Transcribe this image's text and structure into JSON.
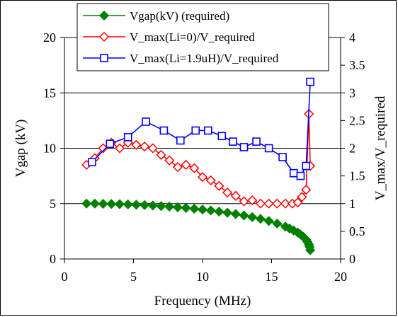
{
  "chart_data": {
    "type": "line",
    "xlabel": "Frequency (MHz)",
    "ylabel": "Vgap (kV)",
    "y2label": "V_max/V_required",
    "xlim": [
      0,
      20
    ],
    "ylim": [
      0,
      20
    ],
    "y2lim": [
      0,
      4
    ],
    "xticks": [
      "0",
      "5",
      "10",
      "15",
      "20"
    ],
    "yticks": [
      "0",
      "5",
      "10",
      "15",
      "20"
    ],
    "y2ticks": [
      "0",
      "0.5",
      "1",
      "1.5",
      "2",
      "2.5",
      "3",
      "3.5",
      "4"
    ],
    "grid": "horizontal major lines",
    "legend_position": "top",
    "series": [
      {
        "name": "Vgap(kV) (required)",
        "axis": "left",
        "color": "#008000",
        "marker": "filled-diamond",
        "x": [
          1.6,
          2.2,
          2.8,
          3.4,
          4.0,
          4.6,
          5.2,
          5.8,
          6.4,
          7.0,
          7.6,
          8.2,
          8.8,
          9.4,
          10.0,
          10.6,
          11.2,
          11.8,
          12.4,
          13.0,
          13.6,
          14.2,
          14.8,
          15.4,
          16.0,
          16.3,
          16.6,
          16.9,
          17.1,
          17.3,
          17.5,
          17.6,
          17.7,
          17.75,
          17.8
        ],
        "y": [
          5.0,
          5.0,
          4.98,
          4.97,
          4.95,
          4.93,
          4.9,
          4.87,
          4.83,
          4.78,
          4.73,
          4.67,
          4.61,
          4.54,
          4.46,
          4.38,
          4.28,
          4.18,
          4.06,
          3.93,
          3.78,
          3.62,
          3.43,
          3.2,
          2.92,
          2.75,
          2.57,
          2.38,
          2.2,
          2.0,
          1.75,
          1.55,
          1.3,
          1.1,
          0.8
        ]
      },
      {
        "name": "V_max(Li=0)/V_required",
        "axis": "right",
        "color": "#ff0000",
        "marker": "open-diamond",
        "x": [
          1.6,
          2.2,
          2.8,
          3.4,
          4.0,
          4.6,
          5.2,
          5.8,
          6.4,
          7.0,
          7.6,
          8.2,
          8.8,
          9.4,
          10.0,
          10.6,
          11.2,
          11.8,
          12.4,
          13.0,
          13.6,
          14.2,
          14.8,
          15.4,
          16.0,
          16.5,
          16.9,
          17.2,
          17.5,
          17.7,
          17.8
        ],
        "y": [
          1.7,
          1.82,
          2.0,
          2.1,
          2.0,
          2.1,
          2.06,
          2.03,
          2.0,
          1.88,
          1.78,
          1.66,
          1.7,
          1.64,
          1.48,
          1.42,
          1.32,
          1.2,
          1.14,
          1.04,
          1.06,
          1.0,
          1.0,
          1.0,
          1.0,
          1.0,
          1.02,
          1.12,
          1.25,
          2.62,
          1.68
        ]
      },
      {
        "name": "V_max(Li=1.9uH)/V_required",
        "axis": "right",
        "color": "#0000ff",
        "marker": "open-square",
        "x": [
          2.0,
          3.3,
          4.6,
          5.9,
          7.2,
          8.4,
          9.5,
          10.4,
          11.4,
          12.2,
          13.0,
          13.9,
          14.8,
          15.8,
          16.6,
          17.1,
          17.5,
          17.8
        ],
        "y": [
          1.75,
          2.08,
          2.2,
          2.48,
          2.32,
          2.14,
          2.32,
          2.32,
          2.22,
          2.12,
          2.02,
          2.12,
          2.0,
          1.84,
          1.55,
          1.5,
          1.68,
          3.2
        ]
      }
    ]
  }
}
